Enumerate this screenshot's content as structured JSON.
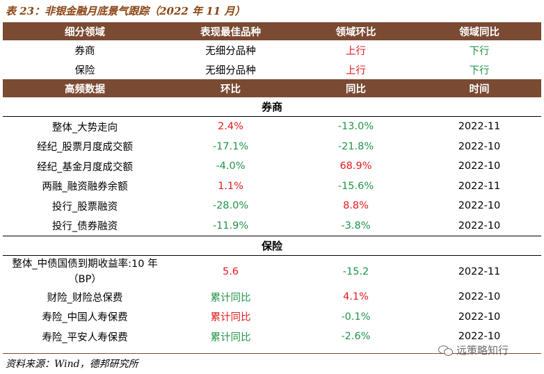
{
  "title": "表 23：非银金融月底景气跟踪（2022 年 11 月）",
  "header1": [
    "细分领域",
    "表现最佳品种",
    "领域环比",
    "领域同比"
  ],
  "domain_rows": [
    {
      "name": "券商",
      "best": "无细分品种",
      "mom": "上行",
      "yoy": "下行"
    },
    {
      "name": "保险",
      "best": "无细分品种",
      "mom": "上行",
      "yoy": "下行"
    }
  ],
  "header2": [
    "高频数据",
    "环比",
    "同比",
    "时间"
  ],
  "section_broker": "券商",
  "broker_rows": [
    {
      "name": "整体_大势走向",
      "mom": "2.4%",
      "yoy": "-13.0%",
      "time": "2022-11"
    },
    {
      "name": "经纪_股票月度成交额",
      "mom": "-17.1%",
      "yoy": "-21.8%",
      "time": "2022-10"
    },
    {
      "name": "经纪_基金月度成交额",
      "mom": "-4.0%",
      "yoy": "68.9%",
      "time": "2022-10"
    },
    {
      "name": "两融_融资融券余额",
      "mom": "1.1%",
      "yoy": "-15.6%",
      "time": "2022-11"
    },
    {
      "name": "投行_股票融资",
      "mom": "-28.0%",
      "yoy": "8.8%",
      "time": "2022-10"
    },
    {
      "name": "投行_债券融资",
      "mom": "-11.9%",
      "yoy": "-3.8%",
      "time": "2022-10"
    }
  ],
  "section_insurance": "保险",
  "insurance_rows": [
    {
      "name_line1": "整体_中债国债到期收益率:10 年",
      "name_line2": "（BP）",
      "mom": "5.6",
      "yoy": "-15.2",
      "time": "2022-11"
    },
    {
      "name": "财险_财险总保费",
      "mom": "累计同比",
      "yoy": "4.1%",
      "time": "2022-10"
    },
    {
      "name": "寿险_中国人寿保费",
      "mom": "累计同比",
      "yoy": "-0.1%",
      "time": "2022-10"
    },
    {
      "name": "寿险_平安人寿保费",
      "mom": "累计同比",
      "yoy": "-2.6%",
      "time": "2022-10"
    }
  ],
  "source": "资料来源：Wind，德邦研究所",
  "watermark": "远策略知行",
  "colors": {
    "header_bg": "#7a4a33",
    "up_red": "#e31a1a",
    "down_green": "#1f9448",
    "title": "#8b4513"
  }
}
